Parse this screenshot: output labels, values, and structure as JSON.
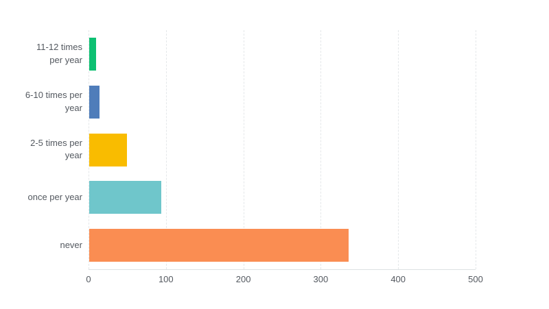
{
  "chart_data": {
    "type": "bar",
    "orientation": "horizontal",
    "title": "",
    "xlabel": "",
    "ylabel": "",
    "categories": [
      "11-12 times per year",
      "6-10 times per year",
      "2-5 times per year",
      "once per year",
      "never"
    ],
    "label_lines": [
      [
        "11-12 times",
        "per year"
      ],
      [
        "6-10 times per",
        "year"
      ],
      [
        "2-5 times per",
        "year"
      ],
      [
        "once per year"
      ],
      [
        "never"
      ]
    ],
    "values": [
      9,
      13,
      49,
      93,
      335
    ],
    "bar_colors": [
      "#0dc072",
      "#4f7dba",
      "#f9bc00",
      "#6fc6cb",
      "#fa8d52"
    ],
    "xlim": [
      0,
      500
    ],
    "x_ticks": [
      0,
      100,
      200,
      300,
      400,
      500
    ],
    "grid": "vertical-dashed",
    "legend": "none"
  },
  "style": {
    "background": "#ffffff",
    "label_color": "#53585f",
    "grid_color": "#e4e7e9",
    "axis_line_color": "#dde1e3"
  }
}
